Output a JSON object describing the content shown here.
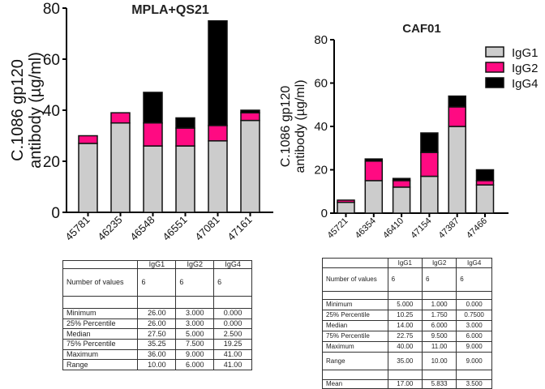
{
  "colors": {
    "IgG1": "#cccccc",
    "IgG2": "#ff0a82",
    "IgG4": "#000000"
  },
  "chart_data": [
    {
      "type": "bar",
      "stacked": true,
      "title": "MPLA+QS21",
      "ylabel": "C.1086 gp120 antibody (µg/ml)",
      "ylabel_lines": [
        "C.1086 gp120",
        "antibody (µg/ml)"
      ],
      "ylim": [
        0,
        80
      ],
      "yticks": [
        0,
        20,
        40,
        60,
        80
      ],
      "categories": [
        "45781",
        "46235",
        "46548",
        "46551",
        "47081",
        "47161"
      ],
      "series": [
        {
          "name": "IgG1",
          "values": [
            27,
            35,
            26,
            26,
            28,
            36
          ]
        },
        {
          "name": "IgG2",
          "values": [
            3,
            4,
            9,
            7,
            6,
            3
          ]
        },
        {
          "name": "IgG4",
          "values": [
            0,
            0,
            12,
            4,
            41,
            1
          ]
        }
      ]
    },
    {
      "type": "bar",
      "stacked": true,
      "title": "CAF01",
      "ylabel": "C.1086 gp120 antibody (µg/ml)",
      "ylabel_lines": [
        "C.1086 gp120",
        "antibody (µg/ml)"
      ],
      "ylim": [
        0,
        80
      ],
      "yticks": [
        0,
        20,
        40,
        60,
        80
      ],
      "categories": [
        "45721",
        "46354",
        "46410",
        "47154",
        "47387",
        "47466"
      ],
      "series": [
        {
          "name": "IgG1",
          "values": [
            5,
            15,
            12,
            17,
            40,
            13
          ]
        },
        {
          "name": "IgG2",
          "values": [
            1,
            9,
            3,
            11,
            9,
            2
          ]
        },
        {
          "name": "IgG4",
          "values": [
            0,
            1,
            1,
            9,
            5,
            5
          ]
        }
      ],
      "legend": [
        "IgG1",
        "IgG2",
        "IgG4"
      ],
      "legend_position": "top-right"
    }
  ],
  "tables": [
    {
      "header": [
        "",
        "IgG1",
        "IgG2",
        "IgG4"
      ],
      "rows": [
        [
          "Number of values",
          "6",
          "6",
          "6"
        ],
        [
          "",
          "",
          "",
          ""
        ],
        [
          "Minimum",
          "26.00",
          "3.000",
          "0.000"
        ],
        [
          "25% Percentile",
          "26.00",
          "3.000",
          "0.000"
        ],
        [
          "Median",
          "27.50",
          "5.000",
          "2.500"
        ],
        [
          "75% Percentile",
          "35.25",
          "7.500",
          "19.25"
        ],
        [
          "Maximum",
          "36.00",
          "9.000",
          "41.00"
        ],
        [
          "Range",
          "10.00",
          "6.000",
          "41.00"
        ]
      ]
    },
    {
      "header": [
        "",
        "IgG1",
        "IgG2",
        "IgG4"
      ],
      "rows": [
        [
          "Number of values",
          "6",
          "6",
          "6"
        ],
        [
          "",
          "",
          "",
          ""
        ],
        [
          "Minimum",
          "5.000",
          "1.000",
          "0.000"
        ],
        [
          "25% Percentile",
          "10.25",
          "1.750",
          "0.7500"
        ],
        [
          "Median",
          "14.00",
          "6.000",
          "3.000"
        ],
        [
          "75% Percentile",
          "22.75",
          "9.500",
          "6.000"
        ],
        [
          "Maximum",
          "40.00",
          "11.00",
          "9.000"
        ],
        [
          "Range",
          "35.00",
          "10.00",
          "9.000"
        ],
        [
          "",
          "",
          "",
          ""
        ],
        [
          "Mean",
          "17.00",
          "5.833",
          "3.500"
        ]
      ]
    }
  ]
}
